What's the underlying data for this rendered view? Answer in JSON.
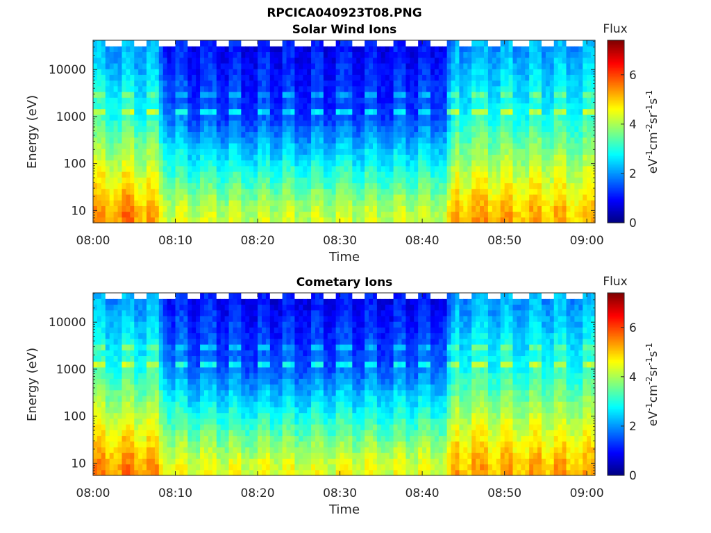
{
  "figure": {
    "title": "RPCICA040923T08.PNG"
  },
  "colormap": {
    "stops": [
      "#00007f",
      "#0000ff",
      "#007fff",
      "#00ffff",
      "#7fff7f",
      "#ffff00",
      "#ff7f00",
      "#ff0000",
      "#7f0000"
    ],
    "vmin": 0,
    "vmax": 7.4
  },
  "chart_data": [
    {
      "type": "heatmap",
      "title": "Solar Wind Ions",
      "xlabel": "Time",
      "ylabel": "Energy (eV)",
      "x_tick_labels": [
        "08:00",
        "08:10",
        "08:20",
        "08:30",
        "08:40",
        "08:50",
        "09:00"
      ],
      "xlim": [
        "08:00",
        "09:01"
      ],
      "y_scale": "log",
      "ylim": [
        5.5,
        42000
      ],
      "y_tick_labels": [
        "10",
        "100",
        "1000",
        "10000"
      ],
      "colorbar": {
        "title": "Flux",
        "label": "eV-1cm-2sr-1s-1",
        "ticks": [
          "0",
          "2",
          "4",
          "6"
        ],
        "range": [
          0,
          7.4
        ]
      },
      "flux_profile": {
        "time_min": [
          0,
          4,
          8,
          9,
          12,
          20,
          30,
          40,
          43,
          44,
          50,
          56,
          61
        ],
        "flux_at_10eV": [
          5.1,
          5.4,
          4.8,
          4.2,
          4.0,
          4.0,
          4.0,
          4.0,
          4.1,
          5.0,
          5.0,
          4.9,
          4.8
        ],
        "flux_at_1000eV": [
          3.0,
          3.0,
          2.8,
          1.8,
          1.4,
          1.3,
          1.3,
          1.4,
          1.6,
          2.8,
          2.9,
          2.9,
          2.9
        ],
        "flux_at_30000eV": [
          2.0,
          2.0,
          1.9,
          1.0,
          0.9,
          0.8,
          0.8,
          0.8,
          1.0,
          1.9,
          2.0,
          2.0,
          2.0
        ]
      }
    },
    {
      "type": "heatmap",
      "title": "Cometary Ions",
      "xlabel": "Time",
      "ylabel": "Energy (eV)",
      "x_tick_labels": [
        "08:00",
        "08:10",
        "08:20",
        "08:30",
        "08:40",
        "08:50",
        "09:00"
      ],
      "xlim": [
        "08:00",
        "09:01"
      ],
      "y_scale": "log",
      "ylim": [
        5.5,
        42000
      ],
      "y_tick_labels": [
        "10",
        "100",
        "1000",
        "10000"
      ],
      "colorbar": {
        "title": "Flux",
        "label": "eV-1cm-2sr-1s-1",
        "ticks": [
          "0",
          "2",
          "4",
          "6"
        ],
        "range": [
          0,
          7.4
        ]
      },
      "flux_profile": {
        "time_min": [
          0,
          4,
          8,
          9,
          12,
          20,
          30,
          40,
          43,
          44,
          50,
          56,
          61
        ],
        "flux_at_10eV": [
          5.2,
          5.3,
          5.0,
          4.4,
          4.2,
          4.2,
          4.2,
          4.2,
          4.3,
          5.0,
          5.0,
          5.0,
          4.9
        ],
        "flux_at_1000eV": [
          3.0,
          3.0,
          2.9,
          2.0,
          1.6,
          1.5,
          1.5,
          1.6,
          1.8,
          2.9,
          2.9,
          2.9,
          2.9
        ],
        "flux_at_30000eV": [
          2.0,
          2.0,
          1.9,
          1.0,
          0.9,
          0.8,
          0.8,
          0.8,
          1.0,
          1.9,
          2.0,
          2.0,
          2.0
        ]
      }
    }
  ]
}
